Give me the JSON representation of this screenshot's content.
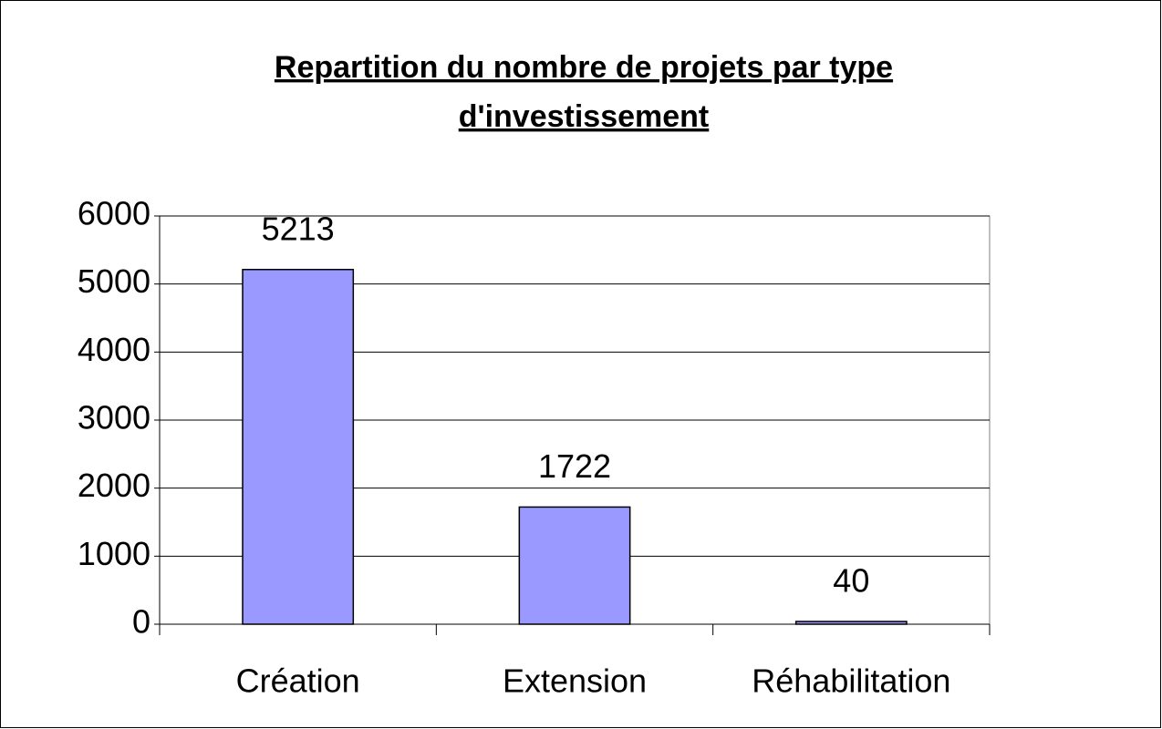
{
  "chart_data": {
    "type": "bar",
    "title": [
      "Repartition du nombre de projets par type",
      "d'investissement"
    ],
    "categories": [
      "Création",
      "Extension",
      "Réhabilitation"
    ],
    "values": [
      5213,
      1722,
      40
    ],
    "color": "#9999ff",
    "ylim": [
      0,
      6000
    ],
    "yticks": [
      0,
      1000,
      2000,
      3000,
      4000,
      5000,
      6000
    ],
    "grid": true
  }
}
